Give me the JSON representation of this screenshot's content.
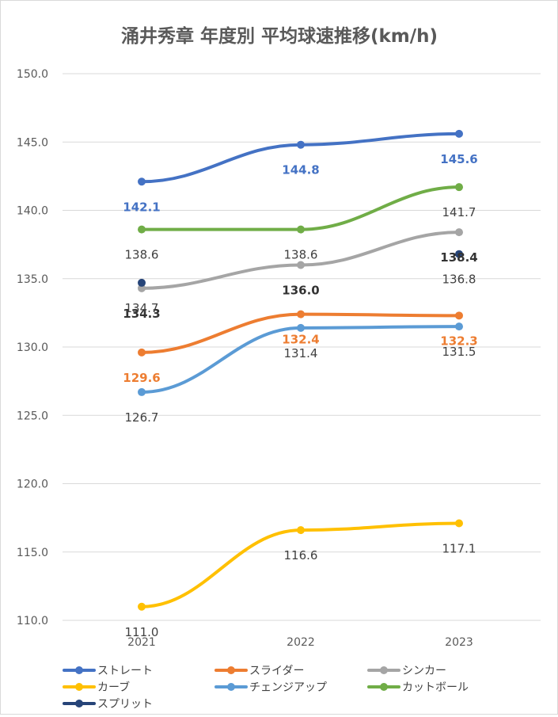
{
  "chart_data": {
    "type": "line",
    "title": "涌井秀章 年度別 平均球速推移(km/h)",
    "categories": [
      "2021",
      "2022",
      "2023"
    ],
    "ylim": [
      110.0,
      150.0
    ],
    "yticks": [
      "150.0",
      "145.0",
      "140.0",
      "135.0",
      "130.0",
      "125.0",
      "120.0",
      "115.0",
      "110.0"
    ],
    "grid": true,
    "legend_position": "bottom",
    "series": [
      {
        "name": "ストレート",
        "values": [
          142.1,
          144.8,
          145.6
        ],
        "labels": [
          "142.1",
          "144.8",
          "145.6"
        ],
        "color": "#4472c4",
        "label_color": "#4472c4",
        "label_bold": true,
        "label_pos": "below"
      },
      {
        "name": "スライダー",
        "values": [
          129.6,
          132.4,
          132.3
        ],
        "labels": [
          "129.6",
          "132.4",
          "132.3"
        ],
        "color": "#ed7d31",
        "label_color": "#ed7d31",
        "label_bold": true,
        "label_pos": "below"
      },
      {
        "name": "シンカー",
        "values": [
          134.3,
          136.0,
          138.4
        ],
        "labels": [
          "134.3",
          "136.0",
          "138.4"
        ],
        "color": "#a5a5a5",
        "label_color": "#333333",
        "label_bold": true,
        "label_pos": "below"
      },
      {
        "name": "カーブ",
        "values": [
          111.0,
          116.6,
          117.1
        ],
        "labels": [
          "111.0",
          "116.6",
          "117.1"
        ],
        "color": "#ffc000",
        "label_color": "#404040",
        "label_bold": false,
        "label_pos": "below"
      },
      {
        "name": "チェンジアップ",
        "values": [
          126.7,
          131.4,
          131.5
        ],
        "labels": [
          "126.7",
          "131.4",
          "131.5"
        ],
        "color": "#5b9bd5",
        "label_color": "#404040",
        "label_bold": false,
        "label_pos": "below"
      },
      {
        "name": "カットボール",
        "values": [
          138.6,
          138.6,
          141.7
        ],
        "labels": [
          "138.6",
          "138.6",
          "141.7"
        ],
        "color": "#70ad47",
        "label_color": "#404040",
        "label_bold": false,
        "label_pos": "below"
      },
      {
        "name": "スプリット",
        "values": [
          134.7,
          null,
          136.8
        ],
        "labels": [
          "134.7",
          "",
          "136.8"
        ],
        "color": "#264478",
        "label_color": "#404040",
        "label_bold": false,
        "label_pos": "below"
      }
    ]
  }
}
